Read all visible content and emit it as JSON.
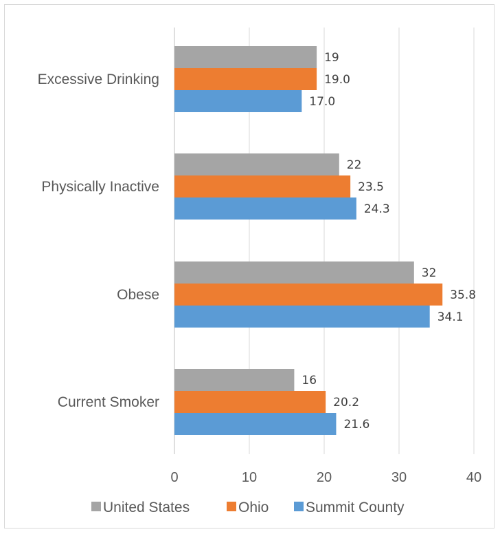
{
  "chart_data": {
    "type": "bar",
    "orientation": "horizontal",
    "categories": [
      "Excessive Drinking",
      "Physically Inactive",
      "Obese",
      "Current Smoker"
    ],
    "series": [
      {
        "name": "United States",
        "color": "#a5a5a5",
        "values": [
          19,
          22,
          32,
          16
        ],
        "labels": [
          "19",
          "22",
          "32",
          "16"
        ]
      },
      {
        "name": "Ohio",
        "color": "#ed7d31",
        "values": [
          19.0,
          23.5,
          35.8,
          20.2
        ],
        "labels": [
          "19.0",
          "23.5",
          "35.8",
          "20.2"
        ]
      },
      {
        "name": "Summit County",
        "color": "#5b9bd5",
        "values": [
          17.0,
          24.3,
          34.1,
          21.6
        ],
        "labels": [
          "17.0",
          "24.3",
          "34.1",
          "21.6"
        ]
      }
    ],
    "xlim": [
      0,
      40
    ],
    "xticks": [
      "0",
      "10",
      "20",
      "30",
      "40"
    ],
    "grid": true,
    "legend": "bottom"
  }
}
